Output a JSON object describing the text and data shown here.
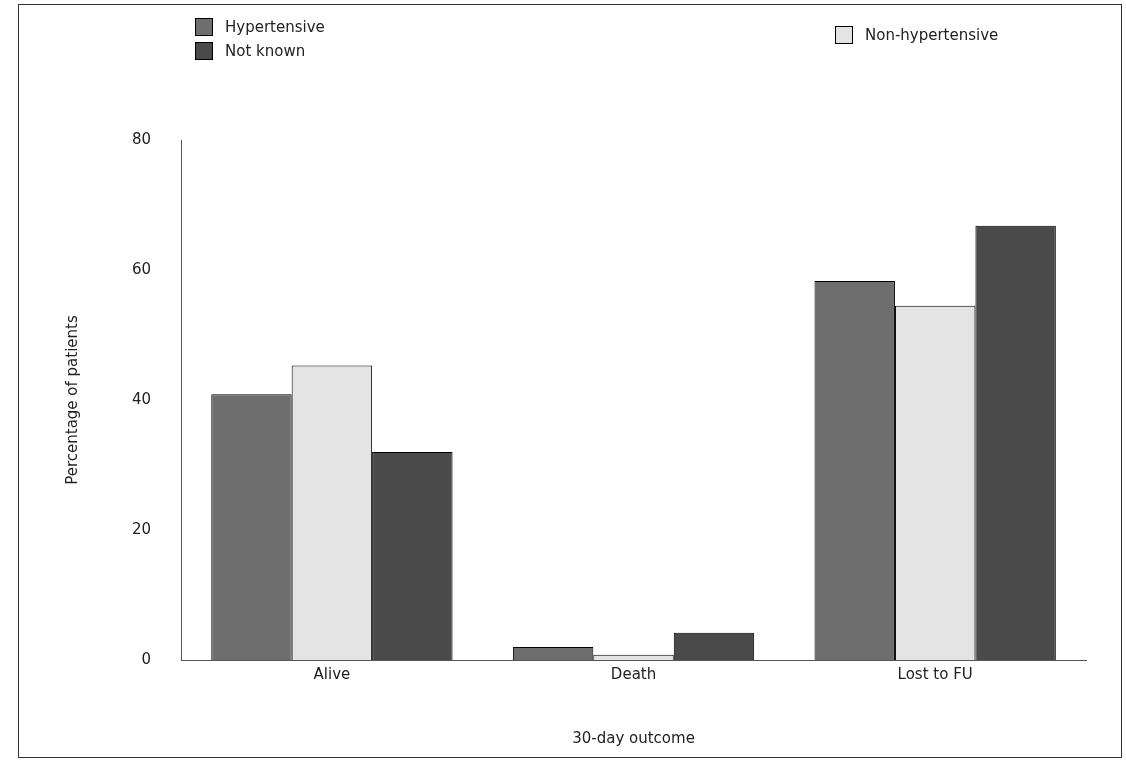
{
  "chart_data": {
    "type": "bar",
    "xlabel": "30-day outcome",
    "ylabel": "Percentage of patients",
    "categories": [
      "Alive",
      "Death",
      "Lost to FU"
    ],
    "series": [
      {
        "name": "Hypertensive",
        "color": "#6e6e6e",
        "values": [
          40.9,
          2.0,
          58.3
        ]
      },
      {
        "name": "Non-hypertensive",
        "color": "#e4e4e4",
        "values": [
          45.3,
          0.8,
          54.5
        ]
      },
      {
        "name": "Not known",
        "color": "#4a4a4a",
        "values": [
          32.0,
          4.2,
          66.8
        ]
      }
    ],
    "ylim": [
      0,
      80
    ],
    "yticks": [
      0,
      20,
      40,
      60,
      80
    ],
    "grid": false,
    "legend": "top"
  }
}
